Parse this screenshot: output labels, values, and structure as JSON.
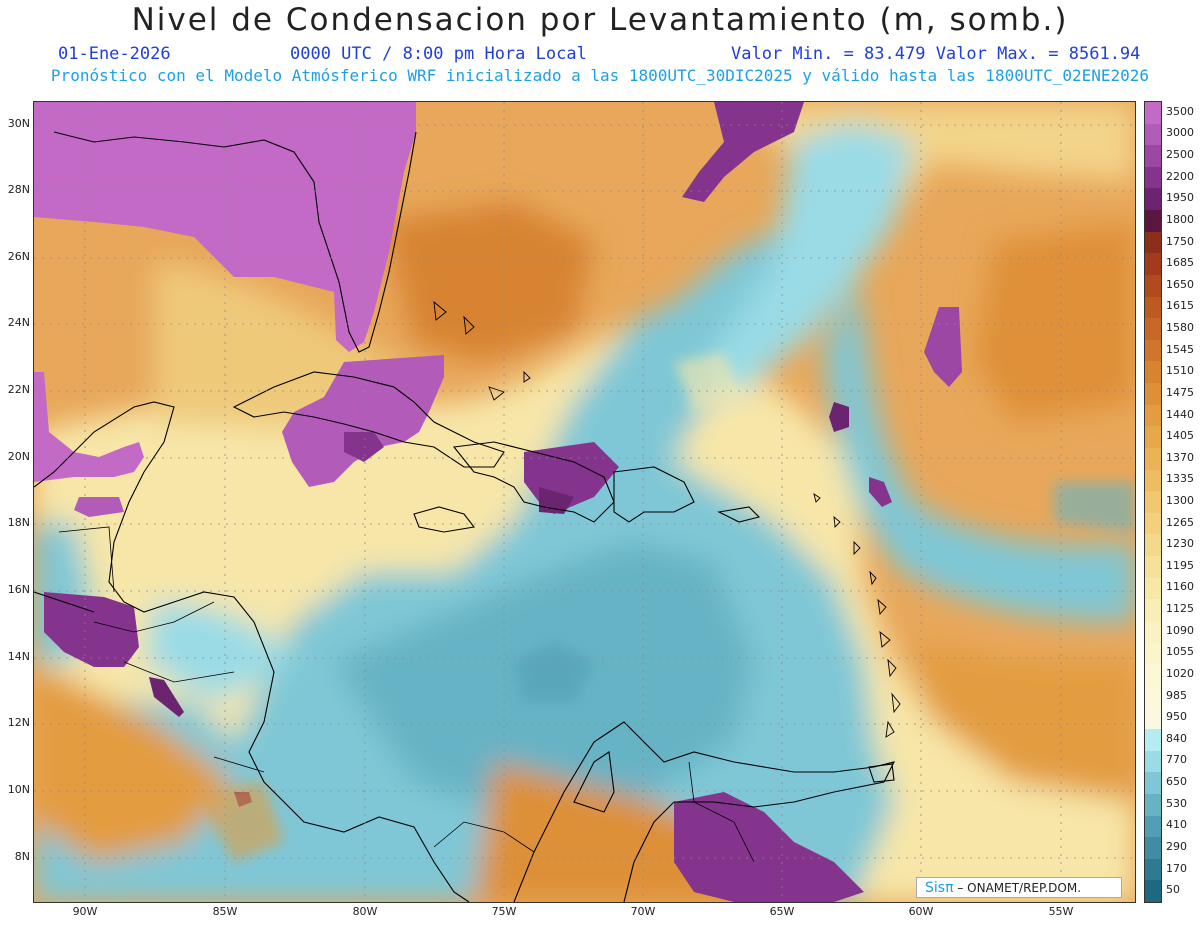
{
  "header": {
    "title": "Nivel de Condensacion por Levantamiento (m, somb.)",
    "date": "01-Ene-2026",
    "time": "0000 UTC / 8:00 pm Hora Local",
    "min_max": "Valor Min. = 83.479  Valor Max. = 8561.94",
    "subtitle": "Pronóstico con el Modelo Atmósferico WRF inicializado a las 1800UTC_30DIC2025 y válido hasta las  1800UTC_02ENE2026"
  },
  "axes": {
    "lat_labels": [
      "30N",
      "28N",
      "26N",
      "24N",
      "22N",
      "20N",
      "18N",
      "16N",
      "14N",
      "12N",
      "10N",
      "8N"
    ],
    "lon_labels": [
      "90W",
      "85W",
      "80W",
      "75W",
      "70W",
      "65W",
      "60W",
      "55W"
    ]
  },
  "colorbar": {
    "labels": [
      "3500",
      "3000",
      "2500",
      "2200",
      "1950",
      "1800",
      "1750",
      "1685",
      "1650",
      "1615",
      "1580",
      "1545",
      "1510",
      "1475",
      "1440",
      "1405",
      "1370",
      "1335",
      "1300",
      "1265",
      "1230",
      "1195",
      "1160",
      "1125",
      "1090",
      "1055",
      "1020",
      "985",
      "950",
      "840",
      "770",
      "650",
      "530",
      "410",
      "290",
      "170",
      "50"
    ],
    "colors": [
      "#c26ac6",
      "#b35bb9",
      "#9c47a4",
      "#84348c",
      "#6a2470",
      "#5a1742",
      "#8c2e1c",
      "#a33a1c",
      "#b24a1e",
      "#bd5a21",
      "#c76826",
      "#d0752b",
      "#d78330",
      "#de9038",
      "#e39c41",
      "#e7a84b",
      "#ebb356",
      "#eebd62",
      "#f1c76f",
      "#f3d07c",
      "#f5d98a",
      "#f7e199",
      "#f8e8a8",
      "#f9eeb6",
      "#faf2c2",
      "#fbf5cc",
      "#fbf8d5",
      "#fbf8dc",
      "#fbf8e2",
      "#b5ecf2",
      "#9adbe6",
      "#7fc7d6",
      "#66b3c5",
      "#519fb3",
      "#3f8ca3",
      "#2e7a93",
      "#1f6882"
    ]
  },
  "credit": {
    "brand": "Sisπ",
    "org": "– ONAMET/REP.DOM."
  },
  "colors": {
    "title_blue": "#1f3fd9",
    "subtitle_cyan": "#1ca0e6"
  }
}
